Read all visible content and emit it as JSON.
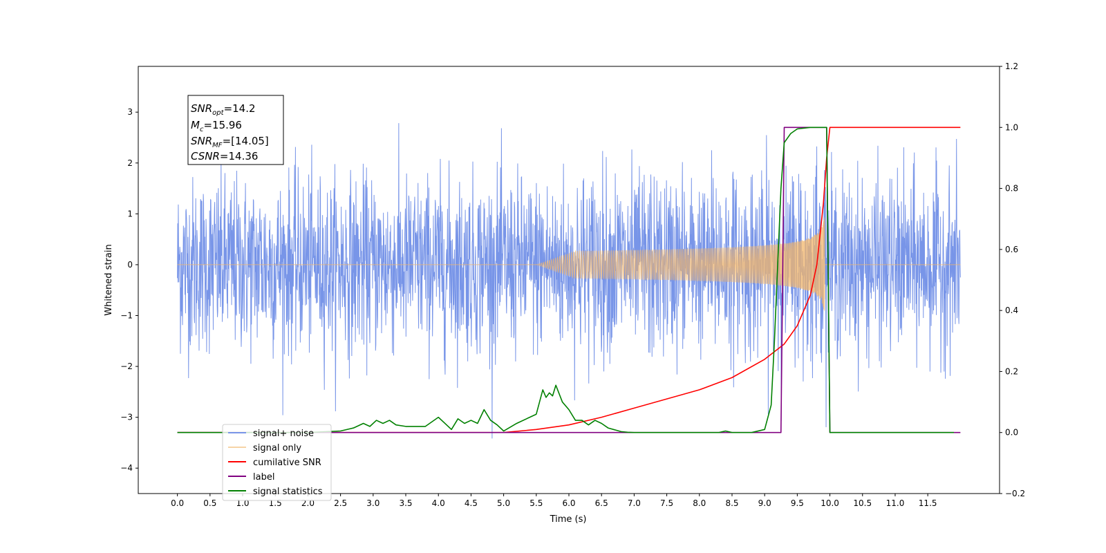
{
  "chart_data": {
    "type": "line",
    "title": "",
    "xlabel": "Time (s)",
    "ylabel": "Whitened strain",
    "xlim": [
      -0.6,
      12.6
    ],
    "ylim": [
      -4.5,
      3.9
    ],
    "y2lim": [
      -0.2,
      1.2
    ],
    "xticks": [
      "0.0",
      "0.5",
      "1.0",
      "1.5",
      "2.0",
      "2.5",
      "3.0",
      "3.5",
      "4.0",
      "4.5",
      "5.0",
      "5.5",
      "6.0",
      "6.5",
      "7.0",
      "7.5",
      "8.0",
      "8.5",
      "9.0",
      "9.5",
      "10.0",
      "10.5",
      "11.0",
      "11.5"
    ],
    "yticks": [
      -4,
      -3,
      -2,
      -1,
      0,
      1,
      2,
      3
    ],
    "ytick_labels": [
      "−4",
      "−3",
      "−2",
      "−1",
      "0",
      "1",
      "2",
      "3"
    ],
    "y2ticks": [
      "−0.2",
      "0.0",
      "0.2",
      "0.4",
      "0.6",
      "0.8",
      "1.0",
      "1.2"
    ],
    "grid": false,
    "legend_position": "bottom-left",
    "annotation": {
      "snr_opt": {
        "base": "SNR",
        "sub": "opt",
        "value": "=14.2"
      },
      "mc": {
        "base": "M",
        "sub": "c",
        "value": "=15.96"
      },
      "snr_mf": {
        "base": "SNR",
        "sub": "MF",
        "value": "=[14.05]"
      },
      "csnr": {
        "base": "CSNR",
        "value": "=14.36"
      }
    },
    "series": [
      {
        "name": "signal+ noise",
        "axis": "left",
        "color": "#7895e8",
        "note": "whitened noise, roughly ±1.5 with spikes to about ±3.5 over 0.0–12.0 s"
      },
      {
        "name": "signal only",
        "axis": "left",
        "color": "#f2b66b",
        "chirp": {
          "t_start": 5.5,
          "t_merge": 9.92,
          "peak_amplitude": 1.0
        }
      },
      {
        "name": "cumilative SNR",
        "axis": "right",
        "color": "#ff0000",
        "x": [
          0.0,
          5.0,
          5.5,
          6.0,
          6.5,
          7.0,
          7.5,
          8.0,
          8.5,
          9.0,
          9.3,
          9.5,
          9.7,
          9.8,
          9.9,
          9.95,
          10.0,
          12.0
        ],
        "y": [
          0.0,
          0.0,
          0.01,
          0.025,
          0.05,
          0.08,
          0.11,
          0.14,
          0.18,
          0.24,
          0.29,
          0.35,
          0.45,
          0.55,
          0.75,
          0.9,
          1.0,
          1.0
        ]
      },
      {
        "name": "label",
        "axis": "right",
        "color": "#800080",
        "x": [
          0.0,
          9.25,
          9.3,
          9.95,
          10.0,
          12.0
        ],
        "y": [
          0.0,
          0.0,
          1.0,
          1.0,
          0.0,
          0.0
        ]
      },
      {
        "name": "signal statistics",
        "axis": "right",
        "color": "#008000",
        "x": [
          0.0,
          2.0,
          2.5,
          2.7,
          2.85,
          2.95,
          3.05,
          3.15,
          3.25,
          3.35,
          3.5,
          3.6,
          3.8,
          4.0,
          4.1,
          4.2,
          4.3,
          4.4,
          4.5,
          4.6,
          4.7,
          4.8,
          4.9,
          5.0,
          5.2,
          5.4,
          5.5,
          5.6,
          5.65,
          5.7,
          5.75,
          5.8,
          5.9,
          6.0,
          6.1,
          6.2,
          6.3,
          6.4,
          6.5,
          6.6,
          6.8,
          6.9,
          7.0,
          8.3,
          8.4,
          8.5,
          8.8,
          9.0,
          9.1,
          9.15,
          9.25,
          9.3,
          9.4,
          9.5,
          9.7,
          9.95,
          10.0,
          10.05,
          11.9
        ],
        "y": [
          0.0,
          0.0,
          0.005,
          0.015,
          0.03,
          0.02,
          0.04,
          0.03,
          0.04,
          0.025,
          0.02,
          0.02,
          0.02,
          0.05,
          0.03,
          0.01,
          0.045,
          0.03,
          0.04,
          0.03,
          0.075,
          0.04,
          0.025,
          0.005,
          0.03,
          0.05,
          0.06,
          0.14,
          0.115,
          0.13,
          0.12,
          0.155,
          0.1,
          0.075,
          0.04,
          0.04,
          0.025,
          0.04,
          0.03,
          0.015,
          0.003,
          0.001,
          0.0,
          0.0,
          0.005,
          0.0,
          0.0,
          0.01,
          0.09,
          0.3,
          0.8,
          0.95,
          0.98,
          0.995,
          1.0,
          1.0,
          0.0,
          0.0,
          0.0
        ]
      }
    ]
  }
}
